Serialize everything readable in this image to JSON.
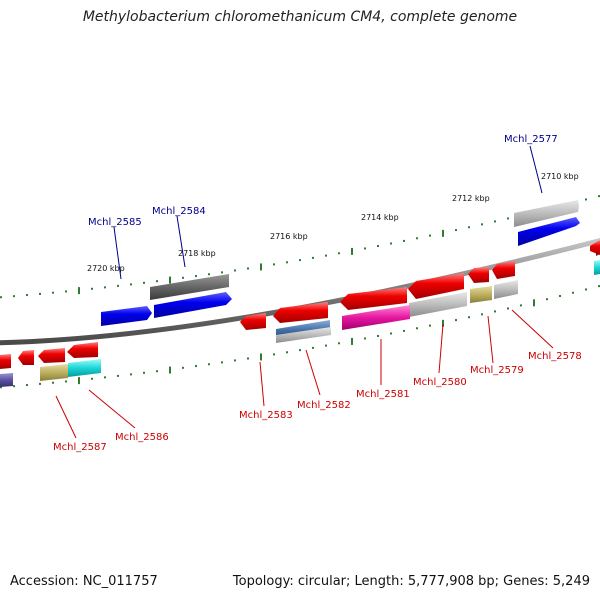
{
  "title": "Methylobacterium chloromethanicum CM4, complete genome",
  "footer": {
    "accession": "Accession: NC_011757",
    "summary": "Topology: circular; Length: 5,777,908 bp; Genes: 5,249"
  },
  "colors": {
    "backbone": "#7a7a7a",
    "ticks": "#2e7d32",
    "label_top": "#00008b",
    "label_bottom": "#cc0000"
  },
  "ticks": [
    {
      "label": "2720 kbp"
    },
    {
      "label": "2718 kbp"
    },
    {
      "label": "2716 kbp"
    },
    {
      "label": "2714 kbp"
    },
    {
      "label": "2712 kbp"
    },
    {
      "label": "2710 kbp"
    }
  ],
  "genes": [
    {
      "label": "Mchl_2577",
      "strand": "plus",
      "color": "#0000ee"
    },
    {
      "label": "Mchl_2578",
      "strand": "minus",
      "color": "#ee0000"
    },
    {
      "label": "Mchl_2579",
      "strand": "minus",
      "color": "#ee0000"
    },
    {
      "label": "Mchl_2580",
      "strand": "minus",
      "color": "#ee0000"
    },
    {
      "label": "Mchl_2581",
      "strand": "minus",
      "color": "#ee0000"
    },
    {
      "label": "Mchl_2582",
      "strand": "minus",
      "color": "#ee0000"
    },
    {
      "label": "Mchl_2583",
      "strand": "minus",
      "color": "#ee0000"
    },
    {
      "label": "Mchl_2584",
      "strand": "plus",
      "color": "#0000ee"
    },
    {
      "label": "Mchl_2585",
      "strand": "plus",
      "color": "#0000ee"
    },
    {
      "label": "Mchl_2586",
      "strand": "minus",
      "color": "#ee0000"
    },
    {
      "label": "Mchl_2587",
      "strand": "minus",
      "color": "#ee0000"
    }
  ]
}
